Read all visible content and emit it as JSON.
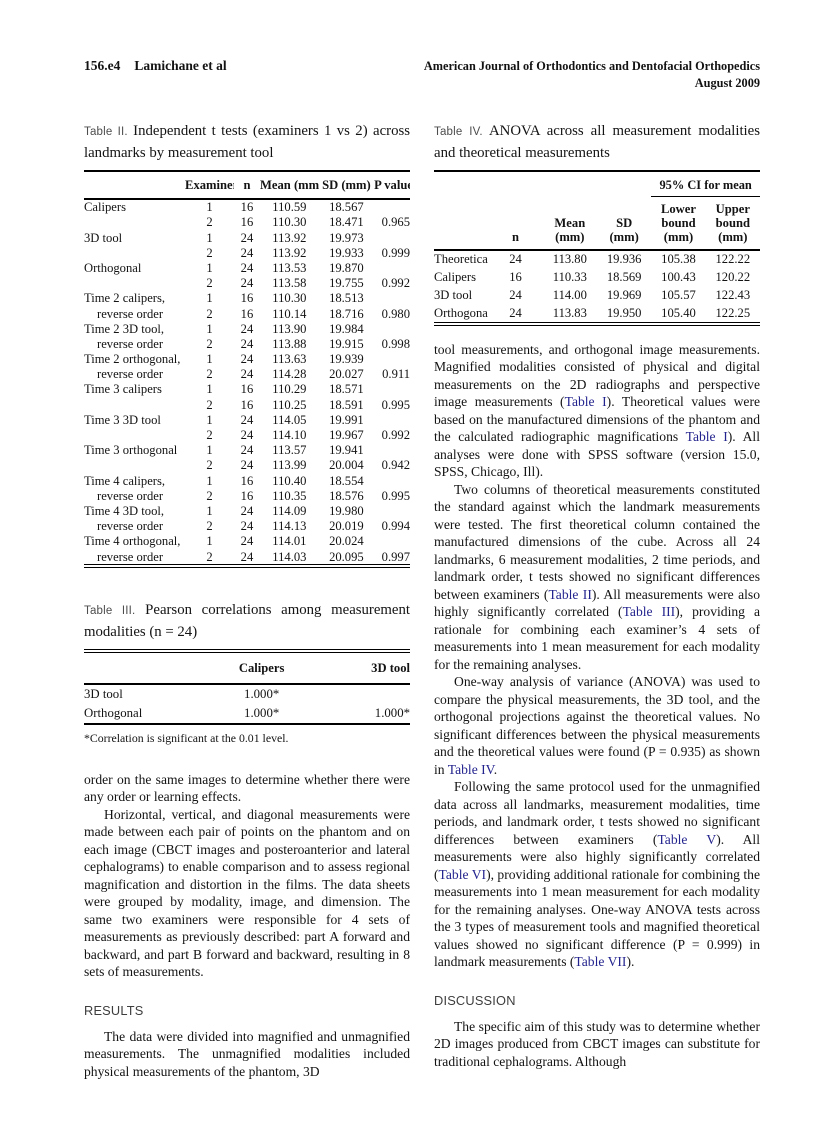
{
  "header": {
    "page_label": "156.e4",
    "authors": "Lamichane et al",
    "journal": "American Journal of Orthodontics and Dentofacial Orthopedics",
    "issue": "August 2009"
  },
  "colors": {
    "link_navy": "#23238e",
    "heading_gray": "#3d3d3d",
    "rule_black": "#000000"
  },
  "table2": {
    "caption_label": "Table II.",
    "caption_text": "Independent t tests (examiners 1 vs 2) across landmarks by measurement tool",
    "columns": [
      "Examiner",
      "n",
      "Mean (mm)",
      "SD (mm)",
      "P value"
    ],
    "rows": [
      {
        "label": "Calipers",
        "ind": false,
        "ex": "1",
        "n": "16",
        "mean": "110.59",
        "sd": "18.567",
        "p": ""
      },
      {
        "label": "",
        "ind": false,
        "ex": "2",
        "n": "16",
        "mean": "110.30",
        "sd": "18.471",
        "p": "0.965"
      },
      {
        "label": "3D tool",
        "ind": false,
        "ex": "1",
        "n": "24",
        "mean": "113.92",
        "sd": "19.973",
        "p": ""
      },
      {
        "label": "",
        "ind": false,
        "ex": "2",
        "n": "24",
        "mean": "113.92",
        "sd": "19.933",
        "p": "0.999"
      },
      {
        "label": "Orthogonal",
        "ind": false,
        "ex": "1",
        "n": "24",
        "mean": "113.53",
        "sd": "19.870",
        "p": ""
      },
      {
        "label": "",
        "ind": false,
        "ex": "2",
        "n": "24",
        "mean": "113.58",
        "sd": "19.755",
        "p": "0.992"
      },
      {
        "label": "Time 2 calipers,",
        "ind": false,
        "ex": "1",
        "n": "16",
        "mean": "110.30",
        "sd": "18.513",
        "p": ""
      },
      {
        "label": "reverse order",
        "ind": true,
        "ex": "2",
        "n": "16",
        "mean": "110.14",
        "sd": "18.716",
        "p": "0.980"
      },
      {
        "label": "Time 2 3D tool,",
        "ind": false,
        "ex": "1",
        "n": "24",
        "mean": "113.90",
        "sd": "19.984",
        "p": ""
      },
      {
        "label": "reverse order",
        "ind": true,
        "ex": "2",
        "n": "24",
        "mean": "113.88",
        "sd": "19.915",
        "p": "0.998"
      },
      {
        "label": "Time 2 orthogonal,",
        "ind": false,
        "ex": "1",
        "n": "24",
        "mean": "113.63",
        "sd": "19.939",
        "p": ""
      },
      {
        "label": "reverse order",
        "ind": true,
        "ex": "2",
        "n": "24",
        "mean": "114.28",
        "sd": "20.027",
        "p": "0.911"
      },
      {
        "label": "Time 3 calipers",
        "ind": false,
        "ex": "1",
        "n": "16",
        "mean": "110.29",
        "sd": "18.571",
        "p": ""
      },
      {
        "label": "",
        "ind": false,
        "ex": "2",
        "n": "16",
        "mean": "110.25",
        "sd": "18.591",
        "p": "0.995"
      },
      {
        "label": "Time 3 3D tool",
        "ind": false,
        "ex": "1",
        "n": "24",
        "mean": "114.05",
        "sd": "19.991",
        "p": ""
      },
      {
        "label": "",
        "ind": false,
        "ex": "2",
        "n": "24",
        "mean": "114.10",
        "sd": "19.967",
        "p": "0.992"
      },
      {
        "label": "Time 3 orthogonal",
        "ind": false,
        "ex": "1",
        "n": "24",
        "mean": "113.57",
        "sd": "19.941",
        "p": ""
      },
      {
        "label": "",
        "ind": false,
        "ex": "2",
        "n": "24",
        "mean": "113.99",
        "sd": "20.004",
        "p": "0.942"
      },
      {
        "label": "Time 4 calipers,",
        "ind": false,
        "ex": "1",
        "n": "16",
        "mean": "110.40",
        "sd": "18.554",
        "p": ""
      },
      {
        "label": "reverse order",
        "ind": true,
        "ex": "2",
        "n": "16",
        "mean": "110.35",
        "sd": "18.576",
        "p": "0.995"
      },
      {
        "label": "Time 4 3D tool,",
        "ind": false,
        "ex": "1",
        "n": "24",
        "mean": "114.09",
        "sd": "19.980",
        "p": ""
      },
      {
        "label": "reverse order",
        "ind": true,
        "ex": "2",
        "n": "24",
        "mean": "114.13",
        "sd": "20.019",
        "p": "0.994"
      },
      {
        "label": "Time 4 orthogonal,",
        "ind": false,
        "ex": "1",
        "n": "24",
        "mean": "114.01",
        "sd": "20.024",
        "p": ""
      },
      {
        "label": "reverse order",
        "ind": true,
        "ex": "2",
        "n": "24",
        "mean": "114.03",
        "sd": "20.095",
        "p": "0.997"
      }
    ]
  },
  "table3": {
    "caption_label": "Table III.",
    "caption_text": "Pearson correlations among measurement modalities (n = 24)",
    "columns": [
      "Calipers",
      "3D tool"
    ],
    "rows": [
      {
        "label": "3D tool",
        "calipers": "1.000*",
        "tool3d": ""
      },
      {
        "label": "Orthogonal",
        "calipers": "1.000*",
        "tool3d": "1.000*"
      }
    ],
    "footnote": "*Correlation is significant at the 0.01 level."
  },
  "table4": {
    "caption_label": "Table IV.",
    "caption_text": "ANOVA across all measurement modalities and theoretical measurements",
    "spanner": "95% CI for mean",
    "columns": [
      "n",
      "Mean\n(mm)",
      "SD\n(mm)",
      "Lower\nbound (mm)",
      "Upper\nbound (mm)"
    ],
    "rows": [
      {
        "label": "Theoretical",
        "n": "24",
        "mean": "113.80",
        "sd": "19.936",
        "lower": "105.38",
        "upper": "122.22"
      },
      {
        "label": "Calipers",
        "n": "16",
        "mean": "110.33",
        "sd": "18.569",
        "lower": "100.43",
        "upper": "120.22"
      },
      {
        "label": "3D tool",
        "n": "24",
        "mean": "114.00",
        "sd": "19.969",
        "lower": "105.57",
        "upper": "122.43"
      },
      {
        "label": "Orthogonal",
        "n": "24",
        "mean": "113.83",
        "sd": "19.950",
        "lower": "105.40",
        "upper": "122.25"
      }
    ]
  },
  "left_column": {
    "blocks": [
      {
        "type": "paragraph",
        "indent": false,
        "segments": [
          {
            "t": "order on the same images to determine whether there were any order or learning effects."
          }
        ]
      },
      {
        "type": "paragraph",
        "indent": true,
        "segments": [
          {
            "t": "Horizontal, vertical, and diagonal measurements were made between each pair of points on the phantom and on each image (CBCT images and posteroanterior and lateral cephalograms) to enable comparison and to assess regional magnification and distortion in the films. The data sheets were grouped by modality, image, and dimension. The same two examiners were responsible for 4 sets of measurements as previously described: part A forward and backward, and part B forward and backward, resulting in 8 sets of measurements."
          }
        ]
      },
      {
        "type": "heading",
        "text": "RESULTS"
      },
      {
        "type": "paragraph",
        "indent": true,
        "segments": [
          {
            "t": "The data were divided into magnified and unmagnified measurements. The unmagnified modalities included physical measurements of the phantom, 3D"
          }
        ]
      }
    ]
  },
  "right_column": {
    "blocks": [
      {
        "type": "paragraph",
        "indent": false,
        "segments": [
          {
            "t": "tool measurements, and orthogonal image measurements. Magnified modalities consisted of physical and digital measurements on the 2D radiographs and perspective image measurements ("
          },
          {
            "t": "Table I",
            "link": true
          },
          {
            "t": "). Theoretical values were based on the manufactured dimensions of the phantom and the calculated radiographic magnifications "
          },
          {
            "t": "Table I",
            "link": true
          },
          {
            "t": "). All analyses were done with SPSS software (version 15.0, SPSS, Chicago, Ill)."
          }
        ]
      },
      {
        "type": "paragraph",
        "indent": true,
        "segments": [
          {
            "t": "Two columns of theoretical measurements constituted the standard against which the landmark measurements were tested. The first theoretical column contained the manufactured dimensions of the cube. Across all 24 landmarks, 6 measurement modalities, 2 time periods, and landmark order, t tests showed no significant differences between examiners ("
          },
          {
            "t": "Table II",
            "link": true
          },
          {
            "t": "). All measurements were also highly significantly correlated ("
          },
          {
            "t": "Table III",
            "link": true
          },
          {
            "t": "), providing a rationale for combining each examiner’s 4 sets of measurements into 1 mean measurement for each modality for the remaining analyses."
          }
        ]
      },
      {
        "type": "paragraph",
        "indent": true,
        "segments": [
          {
            "t": "One-way analysis of variance (ANOVA) was used to compare the physical measurements, the 3D tool, and the orthogonal projections against the theoretical values. No significant differences between the physical measurements and the theoretical values were found (P = 0.935) as shown in "
          },
          {
            "t": "Table IV",
            "link": true
          },
          {
            "t": "."
          }
        ]
      },
      {
        "type": "paragraph",
        "indent": true,
        "segments": [
          {
            "t": "Following the same protocol used for the unmagnified data across all landmarks, measurement modalities, time periods, and landmark order, t tests showed no significant differences between examiners ("
          },
          {
            "t": "Table V",
            "link": true
          },
          {
            "t": "). All measurements were also highly significantly correlated ("
          },
          {
            "t": "Table VI",
            "link": true
          },
          {
            "t": "), providing additional rationale for combining the measurements into 1 mean measurement for each modality for the remaining analyses. One-way ANOVA tests across the 3 types of measurement tools and magnified theoretical values showed no significant difference (P = 0.999) in landmark measurements ("
          },
          {
            "t": "Table VII",
            "link": true
          },
          {
            "t": ")."
          }
        ]
      },
      {
        "type": "heading",
        "text": "DISCUSSION"
      },
      {
        "type": "paragraph",
        "indent": true,
        "segments": [
          {
            "t": "The specific aim of this study was to determine whether 2D images produced from CBCT images can substitute for traditional cephalograms. Although"
          }
        ]
      }
    ]
  }
}
